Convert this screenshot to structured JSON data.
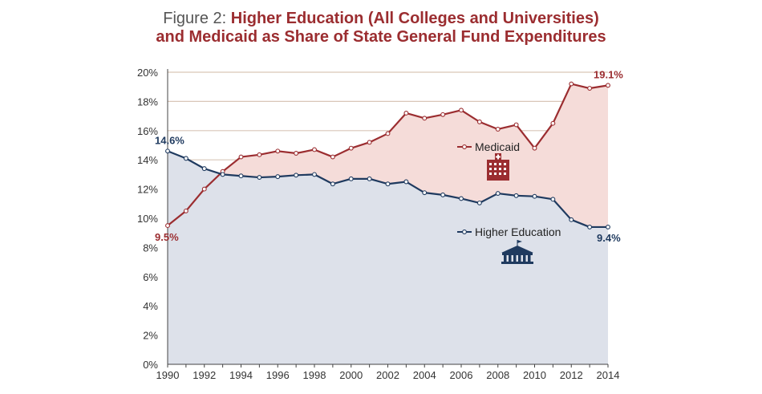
{
  "title": {
    "prefix": "Figure 2: ",
    "line1_bold": "Higher Education (All Colleges and Universities)",
    "line2_bold": "and Medicaid as Share of State General Fund Expenditures"
  },
  "colors": {
    "medicaid": "#9b2d30",
    "higher_ed": "#1f3a5f",
    "medicaid_fill": "#f5dcd9",
    "higher_ed_fill": "#dde1ea",
    "gridline": "#d9c6b8"
  },
  "icons": {
    "medicaid": "hospital-icon",
    "higher_ed": "university-icon"
  },
  "chart_data": {
    "type": "area",
    "x": [
      1990,
      1991,
      1992,
      1993,
      1994,
      1995,
      1996,
      1997,
      1998,
      1999,
      2000,
      2001,
      2002,
      2003,
      2004,
      2005,
      2006,
      2007,
      2008,
      2009,
      2010,
      2011,
      2012,
      2013,
      2014
    ],
    "series": [
      {
        "name": "Medicaid",
        "values": [
          9.5,
          10.5,
          12.0,
          13.2,
          14.2,
          14.35,
          14.6,
          14.45,
          14.7,
          14.2,
          14.8,
          15.2,
          15.8,
          17.2,
          16.85,
          17.1,
          17.4,
          16.6,
          16.1,
          16.4,
          14.8,
          16.5,
          19.2,
          18.9,
          19.1
        ]
      },
      {
        "name": "Higher Education",
        "values": [
          14.6,
          14.1,
          13.4,
          13.0,
          12.9,
          12.8,
          12.85,
          12.95,
          13.0,
          12.35,
          12.7,
          12.7,
          12.35,
          12.5,
          11.75,
          11.6,
          11.35,
          11.05,
          11.7,
          11.55,
          11.5,
          11.3,
          9.9,
          9.4,
          9.4
        ]
      }
    ],
    "y_ticks": [
      "0%",
      "2%",
      "4%",
      "6%",
      "8%",
      "10%",
      "12%",
      "14%",
      "16%",
      "18%",
      "20%"
    ],
    "x_ticks": [
      "1990",
      "1992",
      "1994",
      "1996",
      "1998",
      "2000",
      "2002",
      "2004",
      "2006",
      "2008",
      "2010",
      "2012",
      "2014"
    ],
    "ylim": [
      0,
      20
    ],
    "xlim": [
      1990,
      2014
    ],
    "grid": true,
    "annotations": {
      "medicaid_start": "9.5%",
      "medicaid_end": "19.1%",
      "higher_ed_start": "14.6%",
      "higher_ed_end": "9.4%"
    },
    "legend": {
      "medicaid": "Medicaid",
      "higher_ed": "Higher Education"
    }
  }
}
